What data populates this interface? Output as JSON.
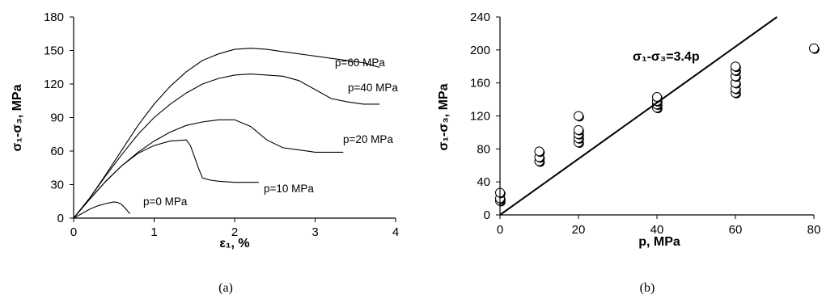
{
  "captions": [
    "(a)",
    "(b)"
  ],
  "chart_data": [
    {
      "type": "line",
      "xlabel": "ε₁, %",
      "ylabel": "σ₁-σ₃, MPa",
      "xlim": [
        0,
        4
      ],
      "ylim": [
        0,
        180
      ],
      "xticks": [
        0,
        1,
        2,
        3,
        4
      ],
      "yticks": [
        0,
        30,
        60,
        90,
        120,
        150,
        180
      ],
      "series": [
        {
          "name": "p=0 MPa",
          "x": [
            0,
            0.1,
            0.2,
            0.3,
            0.4,
            0.5,
            0.55,
            0.6,
            0.65,
            0.7
          ],
          "y": [
            0,
            4,
            8,
            11,
            13,
            14.5,
            14,
            12,
            8,
            4
          ]
        },
        {
          "name": "p=10 MPa",
          "x": [
            0,
            0.2,
            0.4,
            0.6,
            0.8,
            1.0,
            1.2,
            1.4,
            1.45,
            1.5,
            1.55,
            1.6,
            1.7,
            1.8,
            2.0,
            2.2,
            2.3
          ],
          "y": [
            0,
            17,
            33,
            47,
            58,
            65,
            69,
            70,
            65,
            55,
            45,
            36,
            34,
            33,
            32,
            32,
            32
          ]
        },
        {
          "name": "p=20 MPa",
          "x": [
            0,
            0.2,
            0.4,
            0.6,
            0.8,
            1.0,
            1.2,
            1.4,
            1.6,
            1.8,
            2.0,
            2.2,
            2.4,
            2.6,
            2.8,
            3.0,
            3.2,
            3.35
          ],
          "y": [
            0,
            17,
            33,
            47,
            59,
            69,
            77,
            83,
            86,
            88,
            88,
            82,
            70,
            63,
            61,
            59,
            59,
            59
          ]
        },
        {
          "name": "p=40 MPa",
          "x": [
            0,
            0.2,
            0.4,
            0.6,
            0.8,
            1.0,
            1.2,
            1.4,
            1.6,
            1.8,
            2.0,
            2.2,
            2.4,
            2.6,
            2.8,
            3.0,
            3.2,
            3.4,
            3.6,
            3.8
          ],
          "y": [
            0,
            18,
            38,
            57,
            75,
            90,
            102,
            112,
            120,
            125,
            128,
            129,
            128,
            127,
            123,
            115,
            107,
            104,
            102,
            102
          ]
        },
        {
          "name": "p=60 MPa",
          "x": [
            0,
            0.2,
            0.4,
            0.6,
            0.8,
            1.0,
            1.2,
            1.4,
            1.6,
            1.8,
            2.0,
            2.2,
            2.4,
            2.6,
            2.8,
            3.0,
            3.2,
            3.4,
            3.6,
            3.8
          ],
          "y": [
            0,
            18,
            39,
            61,
            83,
            102,
            118,
            131,
            141,
            147,
            151,
            152,
            151,
            149,
            147,
            145,
            143,
            141,
            139,
            135
          ]
        }
      ],
      "annotations": [
        "p=60 MPa",
        "p=40 MPa",
        "p=20 MPa",
        "p=10 MPa",
        "p=0 MPa"
      ]
    },
    {
      "type": "scatter",
      "xlabel": "p, MPa",
      "ylabel": "σ₁-σ₃, MPa",
      "xlim": [
        0,
        80
      ],
      "ylim": [
        0,
        240
      ],
      "xticks": [
        0,
        20,
        40,
        60,
        80
      ],
      "yticks": [
        0,
        40,
        80,
        120,
        160,
        200,
        240
      ],
      "points": [
        [
          0,
          17
        ],
        [
          0,
          20
        ],
        [
          0,
          27
        ],
        [
          10,
          65
        ],
        [
          10,
          70
        ],
        [
          10,
          77
        ],
        [
          20,
          88
        ],
        [
          20,
          93
        ],
        [
          20,
          98
        ],
        [
          20,
          103
        ],
        [
          20,
          120
        ],
        [
          40,
          130
        ],
        [
          40,
          134
        ],
        [
          40,
          138
        ],
        [
          40,
          143
        ],
        [
          60,
          148
        ],
        [
          60,
          153
        ],
        [
          60,
          160
        ],
        [
          60,
          168
        ],
        [
          60,
          175
        ],
        [
          60,
          180
        ],
        [
          80,
          202
        ]
      ],
      "fit": {
        "label": "σ₁-σ₃=3.4p",
        "slope": 3.4,
        "intercept": 0
      }
    }
  ]
}
